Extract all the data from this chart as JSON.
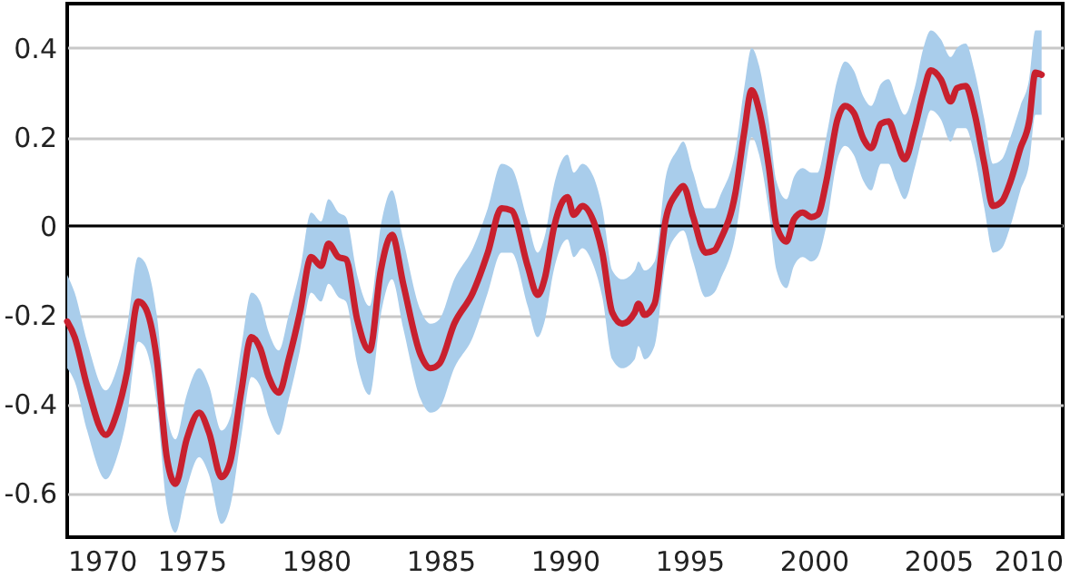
{
  "chart_data": {
    "type": "line",
    "x": [
      1970.0,
      1970.3,
      1970.8,
      1971.55,
      1972.0,
      1972.4,
      1972.85,
      1973.1,
      1973.6,
      1974.0,
      1974.35,
      1974.8,
      1975.3,
      1975.7,
      1976.2,
      1976.55,
      1977.0,
      1977.4,
      1977.75,
      1978.1,
      1978.5,
      1978.9,
      1979.35,
      1979.8,
      1980.2,
      1980.5,
      1980.9,
      1981.2,
      1981.65,
      1982.15,
      1982.6,
      1983.05,
      1983.5,
      1984.2,
      1984.6,
      1984.95,
      1985.55,
      1986.3,
      1986.9,
      1987.45,
      1987.85,
      1988.5,
      1988.9,
      1989.2,
      1989.55,
      1989.9,
      1990.1,
      1990.35,
      1990.7,
      1991.15,
      1991.5,
      1991.9,
      1992.3,
      1992.8,
      1992.95,
      1993.2,
      1993.6,
      1994.05,
      1994.5,
      1994.75,
      1995.15,
      1995.65,
      1996.0,
      1996.25,
      1996.85,
      1997.2,
      1997.5,
      1997.8,
      1998.2,
      1998.5,
      1998.9,
      1999.2,
      1999.55,
      1999.9,
      2000.15,
      2000.5,
      2000.95,
      2001.25,
      2001.6,
      2002.0,
      2002.3,
      2002.7,
      2003.0,
      2003.3,
      2003.65,
      2004.05,
      2004.4,
      2004.7,
      2005.1,
      2005.5,
      2005.75,
      2006.1,
      2006.45,
      2006.85,
      2007.2,
      2007.55,
      2007.9,
      2008.3,
      2008.65,
      2008.9,
      2009.15
    ],
    "series": [
      {
        "color": "#c8202e",
        "values": [
          -0.215,
          -0.25,
          -0.36,
          -0.47,
          -0.42,
          -0.33,
          -0.17,
          -0.18,
          -0.3,
          -0.52,
          -0.58,
          -0.48,
          -0.42,
          -0.465,
          -0.565,
          -0.53,
          -0.37,
          -0.25,
          -0.275,
          -0.34,
          -0.375,
          -0.3,
          -0.195,
          -0.07,
          -0.09,
          -0.04,
          -0.07,
          -0.075,
          -0.21,
          -0.28,
          -0.1,
          -0.02,
          -0.13,
          -0.29,
          -0.32,
          -0.31,
          -0.22,
          -0.15,
          -0.06,
          0.04,
          0.035,
          -0.09,
          -0.155,
          -0.115,
          -0.005,
          0.055,
          0.065,
          0.025,
          0.045,
          0.01,
          -0.06,
          -0.195,
          -0.22,
          -0.195,
          -0.175,
          -0.2,
          -0.175,
          0.015,
          0.075,
          0.09,
          0.02,
          -0.06,
          -0.055,
          -0.03,
          0.075,
          0.21,
          0.305,
          0.26,
          0.13,
          0.0,
          -0.035,
          0.015,
          0.03,
          0.02,
          0.025,
          0.1,
          0.24,
          0.27,
          0.255,
          0.195,
          0.175,
          0.23,
          0.235,
          0.195,
          0.15,
          0.22,
          0.3,
          0.35,
          0.33,
          0.28,
          0.31,
          0.315,
          0.255,
          0.14,
          0.045,
          0.055,
          0.1,
          0.175,
          0.235,
          0.345,
          0.34
        ],
        "lower": [
          -0.32,
          -0.35,
          -0.46,
          -0.57,
          -0.52,
          -0.43,
          -0.26,
          -0.27,
          -0.4,
          -0.63,
          -0.69,
          -0.59,
          -0.52,
          -0.56,
          -0.67,
          -0.63,
          -0.47,
          -0.34,
          -0.36,
          -0.43,
          -0.47,
          -0.39,
          -0.28,
          -0.15,
          -0.17,
          -0.13,
          -0.16,
          -0.17,
          -0.31,
          -0.38,
          -0.2,
          -0.12,
          -0.23,
          -0.39,
          -0.42,
          -0.41,
          -0.32,
          -0.25,
          -0.15,
          -0.06,
          -0.06,
          -0.18,
          -0.25,
          -0.21,
          -0.1,
          -0.04,
          -0.03,
          -0.07,
          -0.05,
          -0.09,
          -0.16,
          -0.3,
          -0.32,
          -0.3,
          -0.27,
          -0.3,
          -0.27,
          -0.08,
          -0.02,
          -0.01,
          -0.08,
          -0.16,
          -0.15,
          -0.12,
          -0.02,
          0.11,
          0.2,
          0.16,
          0.03,
          -0.1,
          -0.14,
          -0.09,
          -0.07,
          -0.08,
          -0.07,
          0.0,
          0.15,
          0.18,
          0.16,
          0.1,
          0.08,
          0.14,
          0.14,
          0.1,
          0.06,
          0.13,
          0.21,
          0.26,
          0.24,
          0.19,
          0.22,
          0.22,
          0.16,
          0.04,
          -0.06,
          -0.05,
          0.0,
          0.08,
          0.14,
          0.25,
          0.25
        ],
        "upper": [
          -0.11,
          -0.15,
          -0.26,
          -0.37,
          -0.32,
          -0.23,
          -0.07,
          -0.08,
          -0.2,
          -0.42,
          -0.48,
          -0.38,
          -0.32,
          -0.36,
          -0.46,
          -0.43,
          -0.27,
          -0.15,
          -0.17,
          -0.24,
          -0.28,
          -0.2,
          -0.1,
          0.03,
          0.01,
          0.06,
          0.03,
          0.02,
          -0.11,
          -0.18,
          0.0,
          0.08,
          -0.03,
          -0.19,
          -0.22,
          -0.21,
          -0.12,
          -0.05,
          0.04,
          0.14,
          0.13,
          0.01,
          -0.06,
          -0.02,
          0.09,
          0.15,
          0.16,
          0.12,
          0.14,
          0.11,
          0.04,
          -0.1,
          -0.12,
          -0.1,
          -0.08,
          -0.1,
          -0.08,
          0.11,
          0.17,
          0.19,
          0.12,
          0.04,
          0.04,
          0.07,
          0.17,
          0.31,
          0.4,
          0.36,
          0.23,
          0.1,
          0.06,
          0.11,
          0.13,
          0.12,
          0.12,
          0.2,
          0.33,
          0.37,
          0.35,
          0.29,
          0.27,
          0.32,
          0.33,
          0.29,
          0.25,
          0.31,
          0.4,
          0.44,
          0.42,
          0.38,
          0.4,
          0.41,
          0.35,
          0.24,
          0.14,
          0.15,
          0.2,
          0.27,
          0.33,
          0.44,
          0.44
        ]
      }
    ],
    "xlim": [
      1970,
      2010
    ],
    "xticks": [
      1970,
      1975,
      1980,
      1985,
      1990,
      1995,
      2000,
      2005,
      2010
    ],
    "ylim": [
      -0.7,
      0.5
    ],
    "yticks": [
      {
        "value": 0.4,
        "label": "0.4"
      },
      {
        "value": 0.2,
        "label": "0.2"
      },
      {
        "value": 0,
        "label": "0"
      },
      {
        "value": -0.2,
        "label": "-0.2"
      },
      {
        "value": -0.4,
        "label": "-0.4"
      },
      {
        "value": -0.6,
        "label": "-0.6"
      }
    ],
    "ref_lines": [
      {
        "axis": "y",
        "value": 0,
        "color": "#000000"
      }
    ],
    "grid": "y",
    "line_style": "solid",
    "marker": "none"
  }
}
